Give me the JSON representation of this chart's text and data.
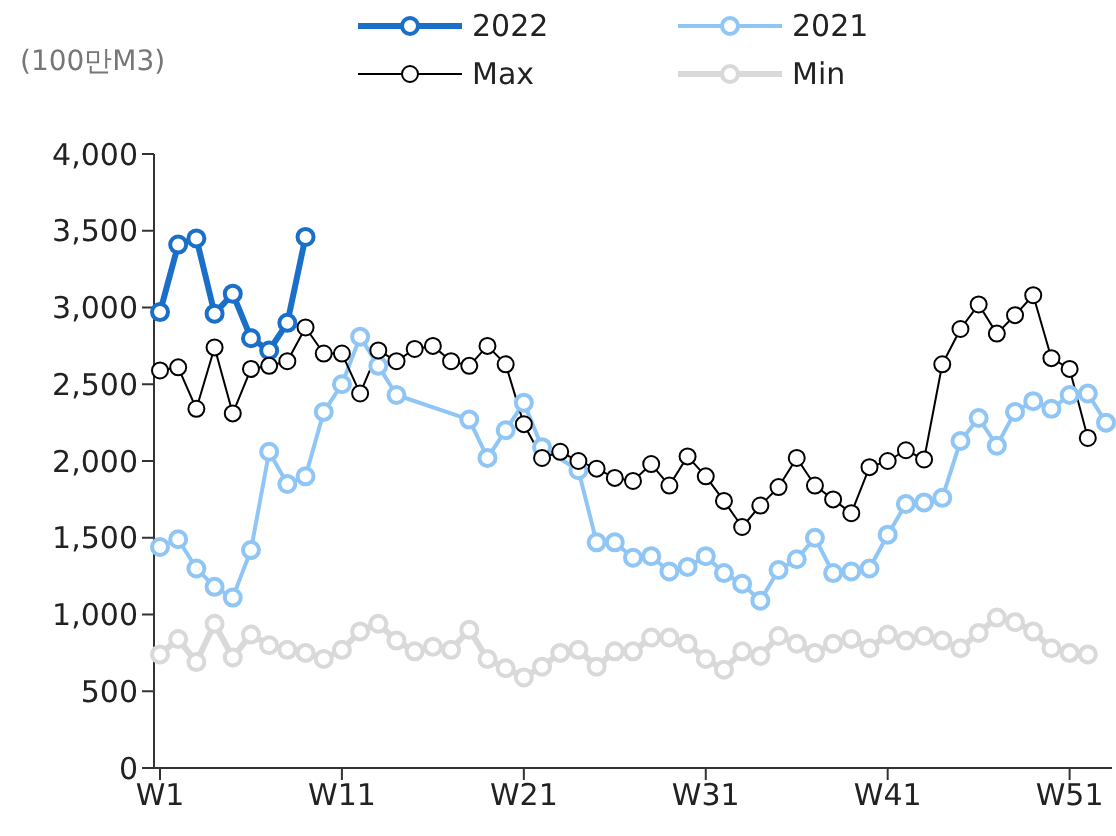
{
  "chart_data": {
    "type": "line",
    "ylabel": "(100만M3)",
    "categories": [
      "W1",
      null,
      null,
      null,
      null,
      null,
      null,
      null,
      null,
      null,
      "W11",
      null,
      null,
      null,
      null,
      null,
      null,
      null,
      null,
      null,
      "W21",
      null,
      null,
      null,
      null,
      null,
      null,
      null,
      null,
      null,
      "W31",
      null,
      null,
      null,
      null,
      null,
      null,
      null,
      null,
      null,
      "W41",
      null,
      null,
      null,
      null,
      null,
      null,
      null,
      null,
      null,
      "W51",
      null,
      null
    ],
    "series": [
      {
        "name": "2022",
        "color": "#1a6fc9",
        "values": [
          2970,
          3410,
          3450,
          2960,
          3090,
          2800,
          2720,
          2900,
          3460,
          null,
          null,
          null,
          null,
          null,
          null,
          null,
          null,
          null,
          null,
          null,
          null,
          null,
          null,
          null,
          null,
          null,
          null,
          null,
          null,
          null,
          null,
          null,
          null,
          null,
          null,
          null,
          null,
          null,
          null,
          null,
          null,
          null,
          null,
          null,
          null,
          null,
          null,
          null,
          null,
          null,
          null,
          null,
          null
        ]
      },
      {
        "name": "2021",
        "color": "#8fc6f5",
        "values": [
          1440,
          1490,
          1300,
          1180,
          1110,
          1420,
          2060,
          1850,
          1900,
          2320,
          2500,
          2810,
          2620,
          2430,
          null,
          null,
          null,
          2270,
          2020,
          2200,
          2380,
          2090,
          null,
          1940,
          1470,
          1470,
          1370,
          1380,
          1280,
          1310,
          1380,
          1270,
          1200,
          1090,
          1290,
          1360,
          1500,
          1270,
          1280,
          1300,
          1520,
          1720,
          1730,
          1760,
          2130,
          2280,
          2100,
          2320,
          2390,
          2340,
          2430,
          2440,
          2250
        ]
      },
      {
        "name": "Max",
        "color": "#000000",
        "values": [
          2590,
          2610,
          2340,
          2740,
          2310,
          2600,
          2620,
          2650,
          2870,
          2700,
          2700,
          2440,
          2720,
          2650,
          2730,
          2750,
          2650,
          2620,
          2750,
          2630,
          2240,
          2020,
          2060,
          2000,
          1950,
          1890,
          1870,
          1980,
          1840,
          2030,
          1900,
          1740,
          1570,
          1710,
          1830,
          2020,
          1840,
          1750,
          1660,
          1960,
          2000,
          2070,
          2010,
          2630,
          2860,
          3020,
          2830,
          2950,
          3080,
          2670,
          2600,
          2150,
          null
        ]
      },
      {
        "name": "Min",
        "color": "#d9d9d9",
        "values": [
          740,
          840,
          690,
          940,
          720,
          870,
          800,
          770,
          750,
          710,
          770,
          890,
          940,
          830,
          760,
          790,
          770,
          900,
          710,
          650,
          590,
          660,
          750,
          770,
          660,
          760,
          760,
          850,
          850,
          810,
          710,
          640,
          760,
          730,
          860,
          810,
          750,
          810,
          840,
          780,
          870,
          830,
          860,
          830,
          780,
          880,
          980,
          950,
          890,
          780,
          750,
          740,
          null
        ]
      }
    ],
    "ylim": [
      0,
      4000
    ],
    "yticks": [
      0,
      500,
      {
        "value": 1000,
        "label": "1,000"
      },
      {
        "value": 1500,
        "label": "1,500"
      },
      {
        "value": 2000,
        "label": "2,000"
      },
      {
        "value": 2500,
        "label": "2,500"
      },
      {
        "value": 3000,
        "label": "3,000"
      },
      {
        "value": 3500,
        "label": "3,500"
      },
      {
        "value": 4000,
        "label": "4,000"
      }
    ],
    "grid": false,
    "legend": "top",
    "marker": "circle",
    "line_style": "solid"
  }
}
